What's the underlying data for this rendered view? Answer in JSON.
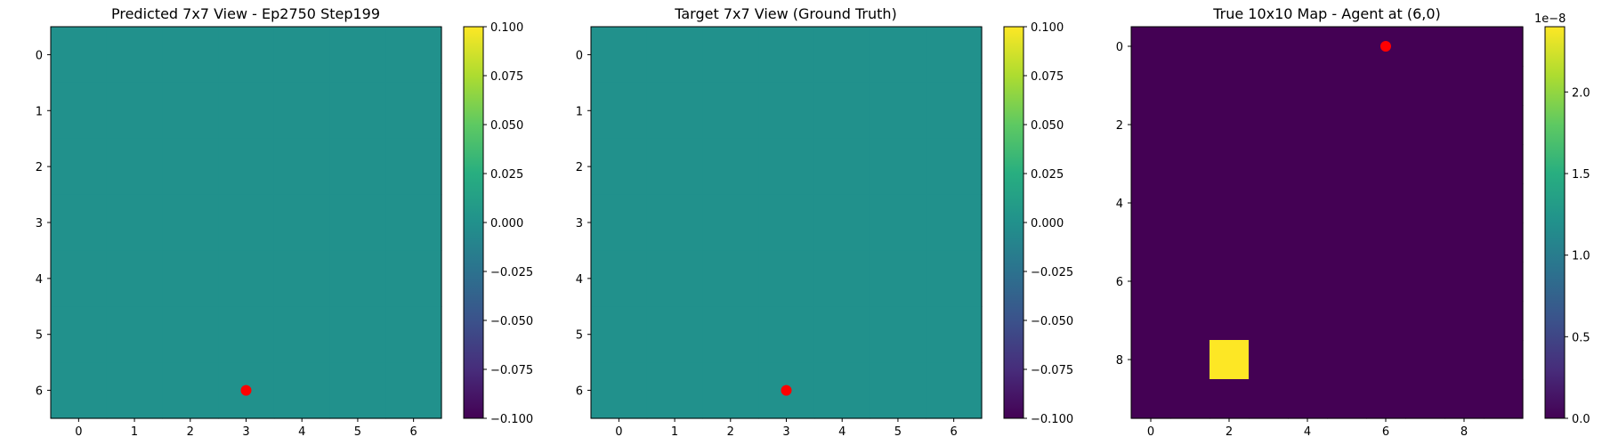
{
  "chart_data": [
    {
      "type": "heatmap",
      "title": "Predicted 7x7 View - Ep2750 Step199",
      "rows": 7,
      "cols": 7,
      "x_ticks": [
        0,
        1,
        2,
        3,
        4,
        5,
        6
      ],
      "y_ticks": [
        0,
        1,
        2,
        3,
        4,
        5,
        6
      ],
      "values": [
        [
          0,
          0,
          0,
          0,
          0,
          0,
          0
        ],
        [
          0,
          0,
          0,
          0,
          0,
          0,
          0
        ],
        [
          0,
          0,
          0,
          0,
          0,
          0,
          0
        ],
        [
          0,
          0,
          0,
          0,
          0,
          0,
          0
        ],
        [
          0,
          0,
          0,
          0,
          0,
          0,
          0
        ],
        [
          0,
          0,
          0,
          0,
          0,
          0,
          0
        ],
        [
          0,
          0,
          0,
          0,
          0,
          0,
          0
        ]
      ],
      "vmin": -0.1,
      "vmax": 0.1,
      "colormap": "viridis",
      "colorbar_ticks": [
        "0.100",
        "0.075",
        "0.050",
        "0.025",
        "0.000",
        "−0.025",
        "−0.050",
        "−0.075",
        "−0.100"
      ],
      "colorbar_tick_values": [
        0.1,
        0.075,
        0.05,
        0.025,
        0.0,
        -0.025,
        -0.05,
        -0.075,
        -0.1
      ],
      "colorbar_offset": "",
      "agent_marker": {
        "x": 3,
        "y": 6,
        "color": "#ff0000"
      }
    },
    {
      "type": "heatmap",
      "title": "Target 7x7 View (Ground Truth)",
      "rows": 7,
      "cols": 7,
      "x_ticks": [
        0,
        1,
        2,
        3,
        4,
        5,
        6
      ],
      "y_ticks": [
        0,
        1,
        2,
        3,
        4,
        5,
        6
      ],
      "values": [
        [
          0,
          0,
          0,
          0,
          0,
          0,
          0
        ],
        [
          0,
          0,
          0,
          0,
          0,
          0,
          0
        ],
        [
          0,
          0,
          0,
          0,
          0,
          0,
          0
        ],
        [
          0,
          0,
          0,
          0,
          0,
          0,
          0
        ],
        [
          0,
          0,
          0,
          0,
          0,
          0,
          0
        ],
        [
          0,
          0,
          0,
          0,
          0,
          0,
          0
        ],
        [
          0,
          0,
          0,
          0,
          0,
          0,
          0
        ]
      ],
      "vmin": -0.1,
      "vmax": 0.1,
      "colormap": "viridis",
      "colorbar_ticks": [
        "0.100",
        "0.075",
        "0.050",
        "0.025",
        "0.000",
        "−0.025",
        "−0.050",
        "−0.075",
        "−0.100"
      ],
      "colorbar_tick_values": [
        0.1,
        0.075,
        0.05,
        0.025,
        0.0,
        -0.025,
        -0.05,
        -0.075,
        -0.1
      ],
      "colorbar_offset": "",
      "agent_marker": {
        "x": 3,
        "y": 6,
        "color": "#ff0000"
      }
    },
    {
      "type": "heatmap",
      "title": "True 10x10 Map - Agent at (6,0)",
      "rows": 10,
      "cols": 10,
      "x_ticks": [
        0,
        2,
        4,
        6,
        8
      ],
      "y_ticks": [
        0,
        2,
        4,
        6,
        8
      ],
      "values": [
        [
          0,
          0,
          0,
          0,
          0,
          0,
          0,
          0,
          0,
          0
        ],
        [
          0,
          0,
          0,
          0,
          0,
          0,
          0,
          0,
          0,
          0
        ],
        [
          0,
          0,
          0,
          0,
          0,
          0,
          0,
          0,
          0,
          0
        ],
        [
          0,
          0,
          0,
          0,
          0,
          0,
          0,
          0,
          0,
          0
        ],
        [
          0,
          0,
          0,
          0,
          0,
          0,
          0,
          0,
          0,
          0
        ],
        [
          0,
          0,
          0,
          0,
          0,
          0,
          0,
          0,
          0,
          0
        ],
        [
          0,
          0,
          0,
          0,
          0,
          0,
          0,
          0,
          0,
          0
        ],
        [
          0,
          0,
          0,
          0,
          0,
          0,
          0,
          0,
          0,
          0
        ],
        [
          0,
          0,
          2.4e-08,
          0,
          0,
          0,
          0,
          0,
          0,
          0
        ],
        [
          0,
          0,
          0,
          0,
          0,
          0,
          0,
          0,
          0,
          0
        ]
      ],
      "vmin": 0,
      "vmax": 2.4e-08,
      "colormap": "viridis",
      "colorbar_ticks": [
        "2.0",
        "1.5",
        "1.0",
        "0.5",
        "0.0"
      ],
      "colorbar_tick_values": [
        2e-08,
        1.5e-08,
        1e-08,
        5e-09,
        0.0
      ],
      "colorbar_offset": "1e−8",
      "agent_marker": {
        "x": 6,
        "y": 0,
        "color": "#ff0000"
      }
    }
  ]
}
